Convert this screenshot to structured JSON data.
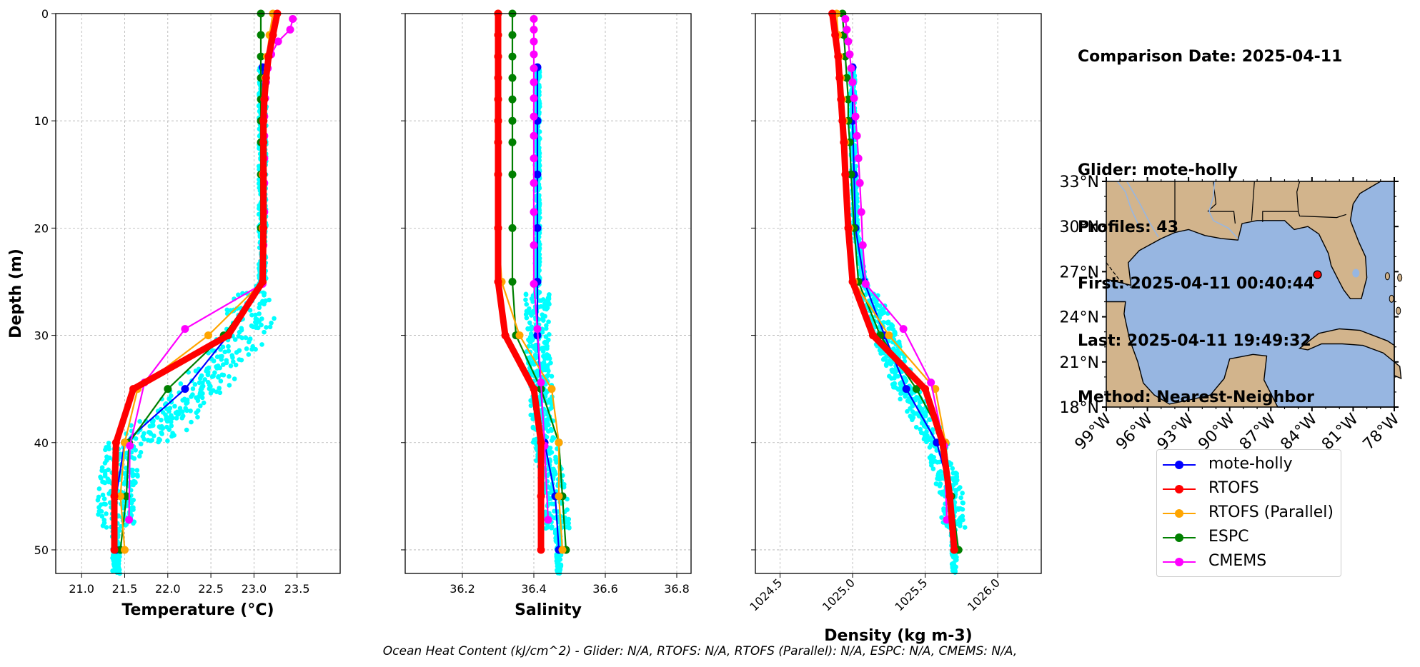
{
  "info": {
    "comparison_date": "Comparison Date: 2025-04-11",
    "glider": "Glider: mote-holly",
    "profiles": "Profiles: 43",
    "first": "First: 2025-04-11 00:40:44",
    "last": "Last: 2025-04-11 19:49:32",
    "method": "Method: Nearest-Neighbor"
  },
  "footer": "Ocean Heat Content (kJ/cm^2) - Glider: N/A,  RTOFS: N/A,  RTOFS (Parallel): N/A,  ESPC: N/A,  CMEMS: N/A,",
  "colors": {
    "glider": "#0000ff",
    "rtofs": "#ff0000",
    "rtofs_parallel": "#ffa500",
    "espc": "#008000",
    "cmems": "#ff00ff",
    "scatter": "#00ffff",
    "ocean": "#97b6e1",
    "land": "#d2b48c",
    "grid": "#b0b0b0"
  },
  "legend": [
    {
      "key": "glider",
      "label": "mote-holly"
    },
    {
      "key": "rtofs",
      "label": "RTOFS"
    },
    {
      "key": "rtofs_parallel",
      "label": "RTOFS (Parallel)"
    },
    {
      "key": "espc",
      "label": "ESPC"
    },
    {
      "key": "cmems",
      "label": "CMEMS"
    }
  ],
  "chart_data": [
    {
      "type": "line",
      "ylabel": "Depth (m)",
      "xlabel": "Temperature (°C)",
      "xlim": [
        20.7,
        24.0
      ],
      "ylim": [
        52.2,
        0
      ],
      "xticks": [
        "21.0",
        "21.5",
        "22.0",
        "22.5",
        "23.0",
        "23.5"
      ],
      "xtick_values": [
        21.0,
        21.5,
        22.0,
        22.5,
        23.0,
        23.5
      ],
      "yticks": [
        "0",
        "10",
        "20",
        "30",
        "40",
        "50"
      ],
      "grid": true,
      "series": [
        {
          "name": "mote-holly",
          "key": "glider",
          "depth": [
            5,
            10,
            15,
            20,
            25,
            30,
            35,
            40,
            45,
            50
          ],
          "values": [
            23.1,
            23.1,
            23.1,
            23.1,
            23.1,
            22.7,
            22.2,
            21.5,
            21.4,
            21.4
          ]
        },
        {
          "name": "RTOFS",
          "key": "rtofs",
          "depth": [
            0,
            2,
            4,
            6,
            8,
            10,
            12,
            15,
            20,
            25,
            30,
            35,
            40,
            45,
            50
          ],
          "values": [
            23.27,
            23.22,
            23.17,
            23.14,
            23.12,
            23.11,
            23.11,
            23.11,
            23.11,
            23.1,
            22.7,
            21.6,
            21.4,
            21.38,
            21.38
          ]
        },
        {
          "name": "RTOFS (Parallel)",
          "key": "rtofs_parallel",
          "depth": [
            0,
            2,
            4,
            6,
            8,
            10,
            12,
            15,
            20,
            25,
            30,
            35,
            40,
            45,
            50
          ],
          "values": [
            23.22,
            23.18,
            23.15,
            23.13,
            23.12,
            23.11,
            23.11,
            23.1,
            23.1,
            23.1,
            22.47,
            21.65,
            21.5,
            21.45,
            21.5
          ]
        },
        {
          "name": "ESPC",
          "key": "espc",
          "depth": [
            0,
            2,
            4,
            6,
            8,
            10,
            12,
            15,
            20,
            25,
            30,
            35,
            40,
            45,
            50
          ],
          "values": [
            23.08,
            23.08,
            23.08,
            23.08,
            23.08,
            23.08,
            23.08,
            23.08,
            23.08,
            23.1,
            22.65,
            22.0,
            21.55,
            21.52,
            21.45
          ]
        },
        {
          "name": "CMEMS",
          "key": "cmems",
          "depth": [
            0.5,
            1.5,
            2.6,
            3.8,
            5.1,
            6.4,
            7.9,
            9.6,
            11.4,
            13.5,
            15.8,
            18.5,
            21.6,
            25.2,
            29.4,
            34.4,
            40.3,
            47.2
          ],
          "values": [
            23.45,
            23.42,
            23.28,
            23.2,
            23.16,
            23.14,
            23.13,
            23.12,
            23.12,
            23.12,
            23.12,
            23.12,
            23.11,
            23.1,
            22.2,
            21.73,
            21.56,
            21.55
          ]
        }
      ]
    },
    {
      "type": "line",
      "xlabel": "Salinity",
      "xlim": [
        36.04,
        36.84
      ],
      "ylim": [
        52.2,
        0
      ],
      "xticks": [
        "36.2",
        "36.4",
        "36.6",
        "36.8"
      ],
      "xtick_values": [
        36.2,
        36.4,
        36.6,
        36.8
      ],
      "grid": true,
      "series": [
        {
          "name": "mote-holly",
          "key": "glider",
          "depth": [
            5,
            10,
            15,
            20,
            25,
            30,
            35,
            40,
            45,
            50
          ],
          "values": [
            36.41,
            36.41,
            36.41,
            36.41,
            36.41,
            36.41,
            36.42,
            36.43,
            36.46,
            36.47
          ]
        },
        {
          "name": "RTOFS",
          "key": "rtofs",
          "depth": [
            0,
            2,
            4,
            6,
            8,
            10,
            12,
            15,
            20,
            25,
            30,
            35,
            40,
            45,
            50
          ],
          "values": [
            36.3,
            36.3,
            36.3,
            36.3,
            36.3,
            36.3,
            36.3,
            36.3,
            36.3,
            36.3,
            36.32,
            36.4,
            36.42,
            36.42,
            36.42
          ]
        },
        {
          "name": "RTOFS (Parallel)",
          "key": "rtofs_parallel",
          "depth": [
            0,
            2,
            4,
            6,
            8,
            10,
            12,
            15,
            20,
            25,
            30,
            35,
            40,
            45,
            50
          ],
          "values": [
            36.3,
            36.3,
            36.3,
            36.3,
            36.3,
            36.3,
            36.3,
            36.3,
            36.3,
            36.31,
            36.36,
            36.45,
            36.47,
            36.47,
            36.48
          ]
        },
        {
          "name": "ESPC",
          "key": "espc",
          "depth": [
            0,
            2,
            4,
            6,
            8,
            10,
            12,
            15,
            20,
            25,
            30,
            35,
            40,
            45,
            50
          ],
          "values": [
            36.34,
            36.34,
            36.34,
            36.34,
            36.34,
            36.34,
            36.34,
            36.34,
            36.34,
            36.34,
            36.35,
            36.42,
            36.47,
            36.48,
            36.49
          ]
        },
        {
          "name": "CMEMS",
          "key": "cmems",
          "depth": [
            0.5,
            1.5,
            2.6,
            3.8,
            5.1,
            6.4,
            7.9,
            9.6,
            11.4,
            13.5,
            15.8,
            18.5,
            21.6,
            25.2,
            29.4,
            34.4,
            40.3,
            47.2
          ],
          "values": [
            36.4,
            36.4,
            36.4,
            36.4,
            36.4,
            36.4,
            36.4,
            36.4,
            36.4,
            36.4,
            36.4,
            36.4,
            36.4,
            36.4,
            36.41,
            36.42,
            36.43,
            36.44
          ]
        }
      ]
    },
    {
      "type": "line",
      "xlabel": "Density (kg m-3)",
      "xlim": [
        1024.33,
        1026.3
      ],
      "ylim": [
        52.2,
        0
      ],
      "xticks": [
        "1024.5",
        "1025.0",
        "1025.5",
        "1026.0"
      ],
      "xtick_values": [
        1024.5,
        1025.0,
        1025.5,
        1026.0
      ],
      "grid": true,
      "series": [
        {
          "name": "mote-holly",
          "key": "glider",
          "depth": [
            5,
            10,
            15,
            20,
            25,
            30,
            35,
            40,
            45,
            50
          ],
          "values": [
            1025.0,
            1025.0,
            1025.01,
            1025.02,
            1025.08,
            1025.22,
            1025.37,
            1025.58,
            1025.68,
            1025.7
          ]
        },
        {
          "name": "RTOFS",
          "key": "rtofs",
          "depth": [
            0,
            2,
            4,
            6,
            8,
            10,
            12,
            15,
            20,
            25,
            30,
            35,
            40,
            45,
            50
          ],
          "values": [
            1024.86,
            1024.88,
            1024.9,
            1024.91,
            1024.92,
            1024.93,
            1024.94,
            1024.95,
            1024.97,
            1025.0,
            1025.14,
            1025.5,
            1025.62,
            1025.67,
            1025.7
          ]
        },
        {
          "name": "RTOFS (Parallel)",
          "key": "rtofs_parallel",
          "depth": [
            0,
            2,
            4,
            6,
            8,
            10,
            12,
            15,
            20,
            25,
            30,
            35,
            40,
            45,
            50
          ],
          "values": [
            1024.89,
            1024.9,
            1024.91,
            1024.92,
            1024.93,
            1024.94,
            1024.95,
            1024.95,
            1024.98,
            1025.01,
            1025.25,
            1025.57,
            1025.64,
            1025.67,
            1025.7
          ]
        },
        {
          "name": "ESPC",
          "key": "espc",
          "depth": [
            0,
            2,
            4,
            6,
            8,
            10,
            12,
            15,
            20,
            25,
            30,
            35,
            40,
            45,
            50
          ],
          "values": [
            1024.93,
            1024.94,
            1024.95,
            1024.96,
            1024.97,
            1024.97,
            1024.98,
            1024.99,
            1025.01,
            1025.04,
            1025.19,
            1025.44,
            1025.64,
            1025.68,
            1025.73
          ]
        },
        {
          "name": "CMEMS",
          "key": "cmems",
          "depth": [
            0.5,
            1.5,
            2.6,
            3.8,
            5.1,
            6.4,
            7.9,
            9.6,
            11.4,
            13.5,
            15.8,
            18.5,
            21.6,
            25.2,
            29.4,
            34.4,
            40.3,
            47.2
          ],
          "values": [
            1024.95,
            1024.96,
            1024.97,
            1024.98,
            1024.99,
            1025.0,
            1025.01,
            1025.02,
            1025.03,
            1025.04,
            1025.05,
            1025.06,
            1025.07,
            1025.09,
            1025.35,
            1025.54,
            1025.63,
            1025.65
          ]
        }
      ]
    }
  ],
  "map": {
    "lat_labels": [
      "33°N",
      "30°N",
      "27°N",
      "24°N",
      "21°N",
      "18°N"
    ],
    "lon_labels": [
      "99°W",
      "96°W",
      "93°W",
      "90°W",
      "87°W",
      "84°W",
      "81°W",
      "78°W"
    ],
    "lat_range": [
      18,
      33
    ],
    "lon_range": [
      -99,
      -78
    ],
    "marker": {
      "lat": 26.8,
      "lon": -83.6,
      "color": "#ff0000"
    }
  }
}
